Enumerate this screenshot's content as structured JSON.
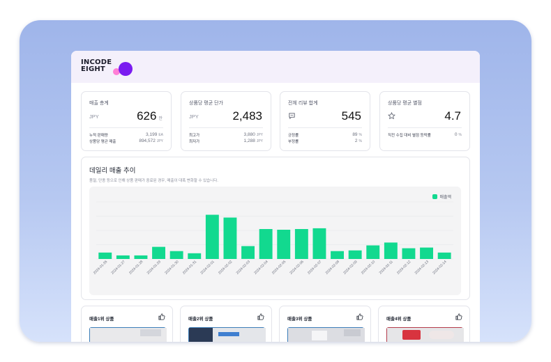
{
  "brand": {
    "line1": "INCODE",
    "line2": "EIGHT"
  },
  "stats": [
    {
      "title": "매출 총계",
      "unit": "JPY",
      "value": "626",
      "suffix": "만",
      "icon": "",
      "rows": [
        {
          "label": "누적 판매량",
          "value": "3,199",
          "unit": "EA"
        },
        {
          "label": "상품당 평균 매출",
          "value": "894,572",
          "unit": "JPY"
        }
      ]
    },
    {
      "title": "상품당 평균 단가",
      "unit": "JPY",
      "value": "2,483",
      "suffix": "",
      "icon": "",
      "rows": [
        {
          "label": "최고가",
          "value": "3,880",
          "unit": "JPY"
        },
        {
          "label": "최저가",
          "value": "1,288",
          "unit": "JPY"
        }
      ]
    },
    {
      "title": "전체 리뷰 합계",
      "unit": "",
      "value": "545",
      "suffix": "",
      "icon": "comment-icon",
      "rows": [
        {
          "label": "긍정률",
          "value": "89",
          "unit": "%"
        },
        {
          "label": "부정률",
          "value": "2",
          "unit": "%"
        }
      ]
    },
    {
      "title": "상품당 평균 별점",
      "unit": "",
      "value": "4.7",
      "suffix": "",
      "icon": "star-icon",
      "rows": [
        {
          "label": "직전 수집 대비 별점 등락률",
          "value": "0",
          "unit": "%"
        }
      ]
    }
  ],
  "chart": {
    "title": "데일리 매출 추이",
    "description": "품절, 단종 등으로 인해 상품 판매가 중료된 경우, 매출이 대폭 변화할 수 있습니다."
  },
  "chart_data": {
    "type": "bar",
    "categories": [
      "2024-01-26",
      "2024-01-27",
      "2024-01-28",
      "2024-01-29",
      "2024-01-30",
      "2024-01-31",
      "2024-02-01",
      "2024-02-02",
      "2024-02-03",
      "2024-02-04",
      "2024-02-05",
      "2024-02-06",
      "2024-02-07",
      "2024-02-08",
      "2024-02-09",
      "2024-02-10",
      "2024-02-11",
      "2024-02-12",
      "2024-02-13",
      "2024-02-14"
    ],
    "series": [
      {
        "name": "매출액",
        "values": [
          9,
          5,
          5,
          17,
          11,
          8,
          62,
          58,
          18,
          42,
          41,
          42,
          43,
          11,
          12,
          19,
          23,
          15,
          16,
          9
        ]
      }
    ],
    "ylim": [
      0,
      80
    ],
    "grid": true,
    "legend_position": "top-right",
    "colors": {
      "bar": "#12d98f"
    }
  },
  "ranks": [
    {
      "title": "매출1위 상품"
    },
    {
      "title": "매출2위 상품"
    },
    {
      "title": "매출3위 상품"
    },
    {
      "title": "매출4위 상품"
    }
  ],
  "colors": {
    "accent": "#7a1cf0",
    "accent_pink": "#ff7fd6",
    "bar": "#12d98f"
  }
}
